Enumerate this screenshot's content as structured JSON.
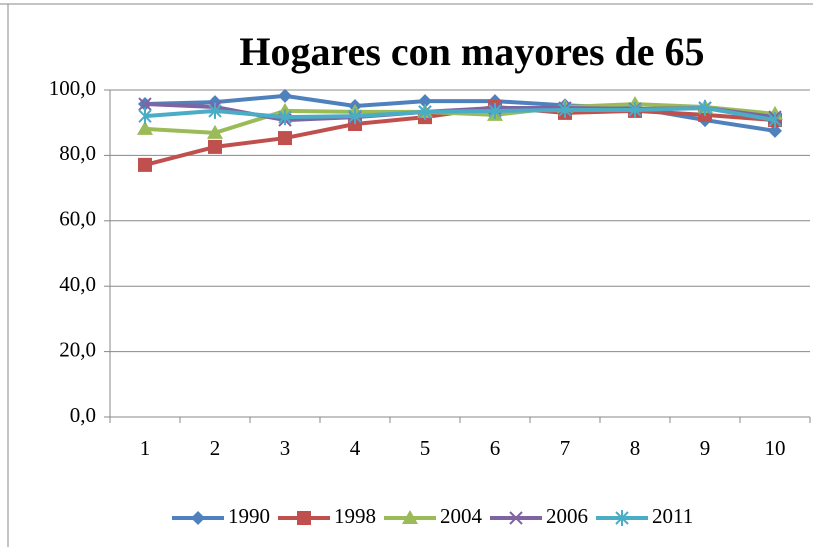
{
  "chart_data": {
    "type": "line",
    "title": "Hogares con mayores de 65",
    "categories": [
      "1",
      "2",
      "3",
      "4",
      "5",
      "6",
      "7",
      "8",
      "9",
      "10"
    ],
    "series": [
      {
        "name": "1990",
        "color": "#4f81bd",
        "marker": "diamond",
        "values": [
          95.7,
          96.3,
          98.2,
          95.1,
          96.6,
          96.6,
          95.3,
          94.5,
          90.8,
          87.5
        ]
      },
      {
        "name": "1998",
        "color": "#c0504d",
        "marker": "square",
        "values": [
          77.1,
          82.6,
          85.3,
          89.6,
          91.7,
          94.8,
          93.0,
          93.6,
          92.4,
          90.8
        ]
      },
      {
        "name": "2004",
        "color": "#9bbb59",
        "marker": "triangle",
        "values": [
          88.1,
          86.9,
          93.6,
          93.3,
          93.3,
          92.4,
          94.8,
          95.7,
          94.8,
          92.7
        ]
      },
      {
        "name": "2006",
        "color": "#8064a2",
        "marker": "x",
        "values": [
          95.7,
          94.8,
          90.8,
          91.7,
          93.3,
          94.5,
          94.5,
          94.2,
          94.5,
          91.7
        ]
      },
      {
        "name": "2011",
        "color": "#4bacc6",
        "marker": "star",
        "values": [
          92.0,
          93.6,
          91.7,
          92.0,
          93.3,
          93.6,
          93.9,
          93.9,
          94.5,
          90.8
        ]
      }
    ],
    "ylim": [
      0,
      100
    ],
    "yticks": [
      {
        "value": 0,
        "label": "0,0"
      },
      {
        "value": 20,
        "label": "20,0"
      },
      {
        "value": 40,
        "label": "40,0"
      },
      {
        "value": 60,
        "label": "60,0"
      },
      {
        "value": 80,
        "label": "80,0"
      },
      {
        "value": 100,
        "label": "100,0"
      }
    ],
    "grid": true,
    "legend": "bottom"
  }
}
